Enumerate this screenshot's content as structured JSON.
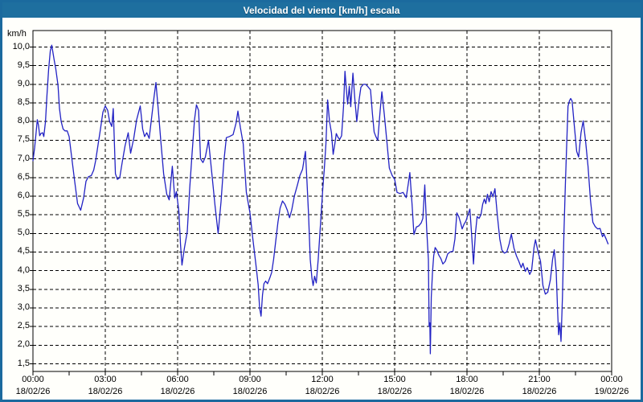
{
  "window": {
    "title": "Velocidad del viento [km/h] escala"
  },
  "colors": {
    "frame": "#1b6a9e",
    "titlebar": "#1e6f9f",
    "title_text": "#ffffff",
    "background": "#fffffb",
    "grid": "#000000",
    "axis": "#000000",
    "line": "#2222c4",
    "label_text": "#000000"
  },
  "y_axis": {
    "unit": "km/h",
    "tick_labels": [
      "10,0",
      "9,5",
      "9,0",
      "8,5",
      "8,0",
      "7,5",
      "7,0",
      "6,5",
      "6,0",
      "5,5",
      "5,0",
      "4,5",
      "4,0",
      "3,5",
      "3,0",
      "2,5",
      "2,0",
      "1,5"
    ],
    "tick_values": [
      10,
      9.5,
      9,
      8.5,
      8,
      7.5,
      7,
      6.5,
      6,
      5.5,
      5,
      4.5,
      4,
      3.5,
      3,
      2.5,
      2,
      1.5
    ]
  },
  "x_axis": {
    "ticks": [
      {
        "hour": 0,
        "time": "00:00",
        "date": "18/02/26"
      },
      {
        "hour": 3,
        "time": "03:00",
        "date": "18/02/26"
      },
      {
        "hour": 6,
        "time": "06:00",
        "date": "18/02/26"
      },
      {
        "hour": 9,
        "time": "09:00",
        "date": "18/02/26"
      },
      {
        "hour": 12,
        "time": "12:00",
        "date": "18/02/26"
      },
      {
        "hour": 15,
        "time": "15:00",
        "date": "18/02/26"
      },
      {
        "hour": 18,
        "time": "18:00",
        "date": "18/02/26"
      },
      {
        "hour": 21,
        "time": "21:00",
        "date": "18/02/26"
      },
      {
        "hour": 24,
        "time": "00:00",
        "date": "19/02/26"
      }
    ],
    "minor_tick_step_hours": 1.5
  },
  "chart_data": {
    "type": "line",
    "title": "Velocidad del viento [km/h] escala",
    "ylabel": "km/h",
    "xlabel": "",
    "ylim": [
      1.3,
      10.44
    ],
    "xlim_hours": [
      0,
      24
    ],
    "grid": true,
    "legend": "none",
    "points": [
      [
        0.0,
        6.95
      ],
      [
        0.07,
        7.3
      ],
      [
        0.13,
        7.7
      ],
      [
        0.18,
        8.05
      ],
      [
        0.23,
        7.9
      ],
      [
        0.28,
        7.62
      ],
      [
        0.33,
        7.68
      ],
      [
        0.4,
        7.7
      ],
      [
        0.45,
        7.6
      ],
      [
        0.52,
        8.0
      ],
      [
        0.58,
        8.7
      ],
      [
        0.65,
        9.4
      ],
      [
        0.72,
        9.9
      ],
      [
        0.78,
        10.05
      ],
      [
        0.83,
        9.85
      ],
      [
        0.88,
        9.65
      ],
      [
        0.95,
        9.4
      ],
      [
        1.04,
        8.97
      ],
      [
        1.1,
        8.35
      ],
      [
        1.17,
        8.0
      ],
      [
        1.25,
        7.8
      ],
      [
        1.33,
        7.75
      ],
      [
        1.42,
        7.75
      ],
      [
        1.5,
        7.6
      ],
      [
        1.58,
        7.18
      ],
      [
        1.72,
        6.45
      ],
      [
        1.85,
        5.8
      ],
      [
        1.98,
        5.62
      ],
      [
        2.1,
        5.95
      ],
      [
        2.2,
        6.4
      ],
      [
        2.3,
        6.52
      ],
      [
        2.42,
        6.55
      ],
      [
        2.52,
        6.7
      ],
      [
        2.6,
        6.95
      ],
      [
        2.7,
        7.38
      ],
      [
        2.8,
        7.8
      ],
      [
        2.9,
        8.25
      ],
      [
        3.0,
        8.42
      ],
      [
        3.1,
        8.3
      ],
      [
        3.18,
        8.0
      ],
      [
        3.27,
        7.87
      ],
      [
        3.33,
        8.35
      ],
      [
        3.42,
        6.6
      ],
      [
        3.5,
        6.45
      ],
      [
        3.6,
        6.5
      ],
      [
        3.7,
        6.9
      ],
      [
        3.82,
        7.35
      ],
      [
        3.95,
        7.7
      ],
      [
        4.05,
        7.15
      ],
      [
        4.18,
        7.55
      ],
      [
        4.3,
        8.05
      ],
      [
        4.45,
        8.42
      ],
      [
        4.55,
        7.8
      ],
      [
        4.63,
        7.6
      ],
      [
        4.72,
        7.7
      ],
      [
        4.82,
        7.55
      ],
      [
        4.92,
        8.1
      ],
      [
        5.02,
        8.65
      ],
      [
        5.1,
        9.05
      ],
      [
        5.2,
        8.3
      ],
      [
        5.3,
        7.5
      ],
      [
        5.42,
        6.6
      ],
      [
        5.55,
        6.05
      ],
      [
        5.65,
        5.9
      ],
      [
        5.78,
        6.8
      ],
      [
        5.88,
        5.95
      ],
      [
        5.95,
        6.12
      ],
      [
        6.05,
        5.6
      ],
      [
        6.12,
        4.7
      ],
      [
        6.18,
        4.15
      ],
      [
        6.28,
        4.6
      ],
      [
        6.4,
        5.05
      ],
      [
        6.5,
        6.2
      ],
      [
        6.6,
        7.15
      ],
      [
        6.7,
        8.05
      ],
      [
        6.78,
        8.45
      ],
      [
        6.87,
        8.3
      ],
      [
        6.95,
        7.0
      ],
      [
        7.05,
        6.9
      ],
      [
        7.15,
        7.05
      ],
      [
        7.28,
        7.5
      ],
      [
        7.42,
        6.6
      ],
      [
        7.55,
        5.75
      ],
      [
        7.68,
        5.0
      ],
      [
        7.8,
        5.85
      ],
      [
        7.92,
        6.95
      ],
      [
        8.02,
        7.57
      ],
      [
        8.15,
        7.6
      ],
      [
        8.3,
        7.65
      ],
      [
        8.42,
        7.95
      ],
      [
        8.5,
        8.28
      ],
      [
        8.6,
        7.85
      ],
      [
        8.72,
        7.4
      ],
      [
        8.85,
        6.1
      ],
      [
        9.0,
        5.55
      ],
      [
        9.12,
        4.85
      ],
      [
        9.24,
        4.2
      ],
      [
        9.34,
        3.62
      ],
      [
        9.4,
        3.0
      ],
      [
        9.46,
        2.78
      ],
      [
        9.52,
        3.35
      ],
      [
        9.58,
        3.65
      ],
      [
        9.65,
        3.72
      ],
      [
        9.73,
        3.65
      ],
      [
        9.82,
        3.8
      ],
      [
        9.9,
        3.95
      ],
      [
        9.98,
        4.3
      ],
      [
        10.07,
        4.8
      ],
      [
        10.16,
        5.3
      ],
      [
        10.25,
        5.68
      ],
      [
        10.35,
        5.87
      ],
      [
        10.45,
        5.78
      ],
      [
        10.55,
        5.62
      ],
      [
        10.64,
        5.42
      ],
      [
        10.73,
        5.62
      ],
      [
        10.84,
        6.0
      ],
      [
        10.96,
        6.28
      ],
      [
        11.07,
        6.55
      ],
      [
        11.18,
        6.72
      ],
      [
        11.25,
        7.0
      ],
      [
        11.3,
        7.2
      ],
      [
        11.36,
        6.45
      ],
      [
        11.43,
        5.5
      ],
      [
        11.5,
        4.3
      ],
      [
        11.57,
        3.8
      ],
      [
        11.62,
        3.6
      ],
      [
        11.68,
        3.85
      ],
      [
        11.75,
        3.67
      ],
      [
        11.83,
        4.3
      ],
      [
        11.9,
        5.0
      ],
      [
        11.96,
        5.6
      ],
      [
        12.02,
        6.2
      ],
      [
        12.08,
        6.7
      ],
      [
        12.15,
        7.4
      ],
      [
        12.22,
        8.58
      ],
      [
        12.3,
        8.0
      ],
      [
        12.38,
        7.7
      ],
      [
        12.45,
        7.12
      ],
      [
        12.52,
        7.4
      ],
      [
        12.58,
        7.68
      ],
      [
        12.65,
        7.58
      ],
      [
        12.72,
        7.52
      ],
      [
        12.8,
        7.62
      ],
      [
        12.88,
        8.4
      ],
      [
        12.94,
        9.35
      ],
      [
        13.0,
        8.85
      ],
      [
        13.05,
        8.47
      ],
      [
        13.12,
        8.95
      ],
      [
        13.18,
        8.4
      ],
      [
        13.27,
        9.3
      ],
      [
        13.35,
        8.6
      ],
      [
        13.43,
        8.0
      ],
      [
        13.52,
        8.55
      ],
      [
        13.6,
        8.92
      ],
      [
        13.7,
        9.0
      ],
      [
        13.8,
        9.0
      ],
      [
        13.9,
        8.93
      ],
      [
        14.0,
        8.85
      ],
      [
        14.08,
        8.2
      ],
      [
        14.15,
        7.72
      ],
      [
        14.22,
        7.6
      ],
      [
        14.3,
        7.5
      ],
      [
        14.4,
        8.3
      ],
      [
        14.47,
        8.8
      ],
      [
        14.57,
        8.2
      ],
      [
        14.68,
        7.45
      ],
      [
        14.78,
        6.75
      ],
      [
        14.9,
        6.55
      ],
      [
        15.0,
        6.45
      ],
      [
        15.1,
        6.1
      ],
      [
        15.22,
        6.07
      ],
      [
        15.35,
        6.1
      ],
      [
        15.48,
        5.96
      ],
      [
        15.57,
        6.35
      ],
      [
        15.63,
        6.63
      ],
      [
        15.72,
        5.8
      ],
      [
        15.8,
        4.97
      ],
      [
        15.9,
        5.17
      ],
      [
        16.0,
        5.2
      ],
      [
        16.1,
        5.28
      ],
      [
        16.17,
        5.4
      ],
      [
        16.25,
        6.3
      ],
      [
        16.33,
        5.1
      ],
      [
        16.4,
        4.3
      ],
      [
        16.43,
        2.5
      ],
      [
        16.46,
        2.6
      ],
      [
        16.48,
        1.77
      ],
      [
        16.52,
        3.3
      ],
      [
        16.57,
        3.96
      ],
      [
        16.62,
        4.4
      ],
      [
        16.68,
        4.62
      ],
      [
        16.75,
        4.55
      ],
      [
        16.83,
        4.42
      ],
      [
        16.92,
        4.32
      ],
      [
        17.0,
        4.18
      ],
      [
        17.1,
        4.25
      ],
      [
        17.2,
        4.45
      ],
      [
        17.3,
        4.5
      ],
      [
        17.42,
        4.52
      ],
      [
        17.5,
        4.85
      ],
      [
        17.58,
        5.55
      ],
      [
        17.66,
        5.45
      ],
      [
        17.73,
        5.3
      ],
      [
        17.8,
        5.12
      ],
      [
        17.88,
        5.25
      ],
      [
        17.95,
        5.32
      ],
      [
        18.05,
        5.52
      ],
      [
        18.12,
        5.65
      ],
      [
        18.2,
        4.9
      ],
      [
        18.27,
        4.18
      ],
      [
        18.35,
        5.0
      ],
      [
        18.42,
        5.45
      ],
      [
        18.5,
        5.4
      ],
      [
        18.58,
        5.5
      ],
      [
        18.65,
        5.78
      ],
      [
        18.72,
        5.92
      ],
      [
        18.78,
        5.8
      ],
      [
        18.85,
        6.05
      ],
      [
        18.92,
        5.85
      ],
      [
        19.0,
        6.12
      ],
      [
        19.08,
        5.98
      ],
      [
        19.16,
        6.2
      ],
      [
        19.26,
        5.48
      ],
      [
        19.36,
        4.85
      ],
      [
        19.45,
        4.55
      ],
      [
        19.55,
        4.47
      ],
      [
        19.65,
        4.5
      ],
      [
        19.75,
        4.72
      ],
      [
        19.84,
        4.98
      ],
      [
        19.95,
        4.6
      ],
      [
        20.05,
        4.4
      ],
      [
        20.15,
        4.25
      ],
      [
        20.25,
        4.08
      ],
      [
        20.32,
        4.2
      ],
      [
        20.42,
        3.98
      ],
      [
        20.5,
        4.08
      ],
      [
        20.6,
        3.9
      ],
      [
        20.68,
        4.0
      ],
      [
        20.78,
        4.62
      ],
      [
        20.84,
        4.83
      ],
      [
        20.95,
        4.5
      ],
      [
        21.05,
        4.25
      ],
      [
        21.15,
        3.6
      ],
      [
        21.25,
        3.37
      ],
      [
        21.35,
        3.42
      ],
      [
        21.46,
        3.76
      ],
      [
        21.55,
        4.3
      ],
      [
        21.62,
        4.56
      ],
      [
        21.7,
        3.98
      ],
      [
        21.76,
        2.9
      ],
      [
        21.8,
        2.28
      ],
      [
        21.85,
        2.6
      ],
      [
        21.9,
        2.1
      ],
      [
        21.96,
        3.3
      ],
      [
        22.02,
        5.0
      ],
      [
        22.08,
        6.3
      ],
      [
        22.14,
        7.47
      ],
      [
        22.19,
        8.41
      ],
      [
        22.25,
        8.56
      ],
      [
        22.3,
        8.62
      ],
      [
        22.36,
        8.55
      ],
      [
        22.45,
        7.9
      ],
      [
        22.55,
        7.2
      ],
      [
        22.63,
        7.05
      ],
      [
        22.73,
        7.7
      ],
      [
        22.82,
        8.02
      ],
      [
        22.92,
        7.47
      ],
      [
        23.02,
        6.8
      ],
      [
        23.12,
        5.9
      ],
      [
        23.22,
        5.3
      ],
      [
        23.32,
        5.18
      ],
      [
        23.42,
        5.12
      ],
      [
        23.52,
        5.13
      ],
      [
        23.62,
        4.91
      ],
      [
        23.68,
        4.98
      ],
      [
        23.77,
        4.85
      ],
      [
        23.85,
        4.72
      ]
    ]
  }
}
